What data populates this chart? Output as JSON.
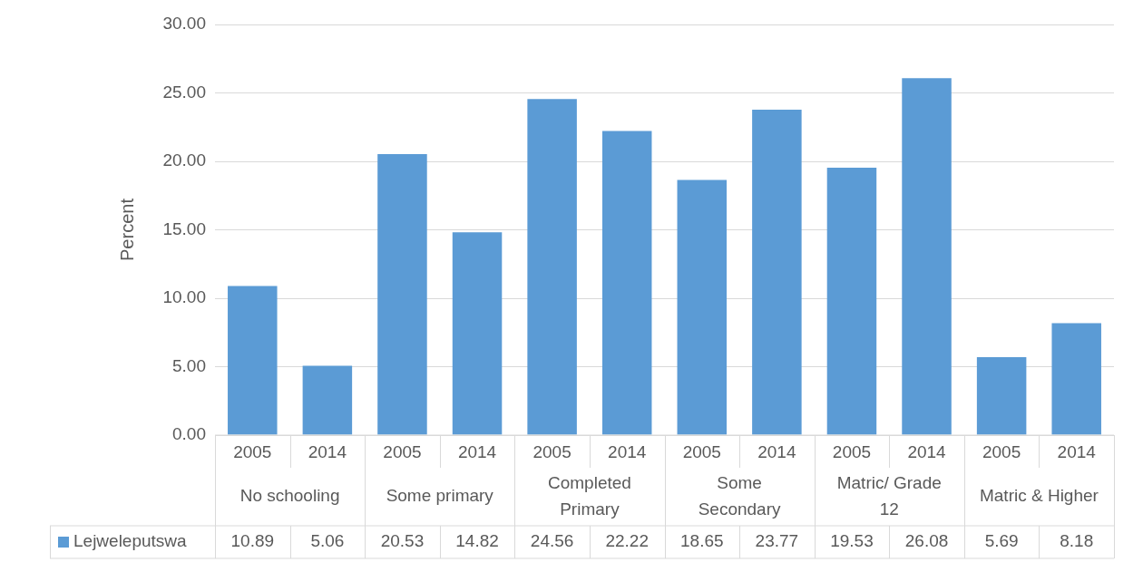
{
  "chart_data": {
    "type": "bar",
    "ylabel": "Percent",
    "categories": [
      "2005",
      "2014",
      "2005",
      "2014",
      "2005",
      "2014",
      "2005",
      "2014",
      "2005",
      "2014",
      "2005",
      "2014"
    ],
    "annotations": [
      "No schooling",
      "Some primary",
      "Completed Primary",
      "Some Secondary",
      "Matric/ Grade 12",
      "Matric & Higher"
    ],
    "series": [
      {
        "name": "Lejweleputswa",
        "color": "#5b9bd5",
        "values": [
          10.89,
          5.06,
          20.53,
          14.82,
          24.56,
          22.22,
          18.65,
          23.77,
          19.53,
          26.08,
          5.69,
          8.18
        ]
      }
    ],
    "ylim": [
      0,
      30
    ],
    "yticks": [
      {
        "value": 0,
        "label": "0.00"
      },
      {
        "value": 5,
        "label": "5.00"
      },
      {
        "value": 10,
        "label": "10.00"
      },
      {
        "value": 15,
        "label": "15.00"
      },
      {
        "value": 20,
        "label": "20.00"
      },
      {
        "value": 25,
        "label": "25.00"
      },
      {
        "value": 30,
        "label": "30.00"
      }
    ],
    "grid": "y",
    "legend": "bottom",
    "data_labels": true
  }
}
